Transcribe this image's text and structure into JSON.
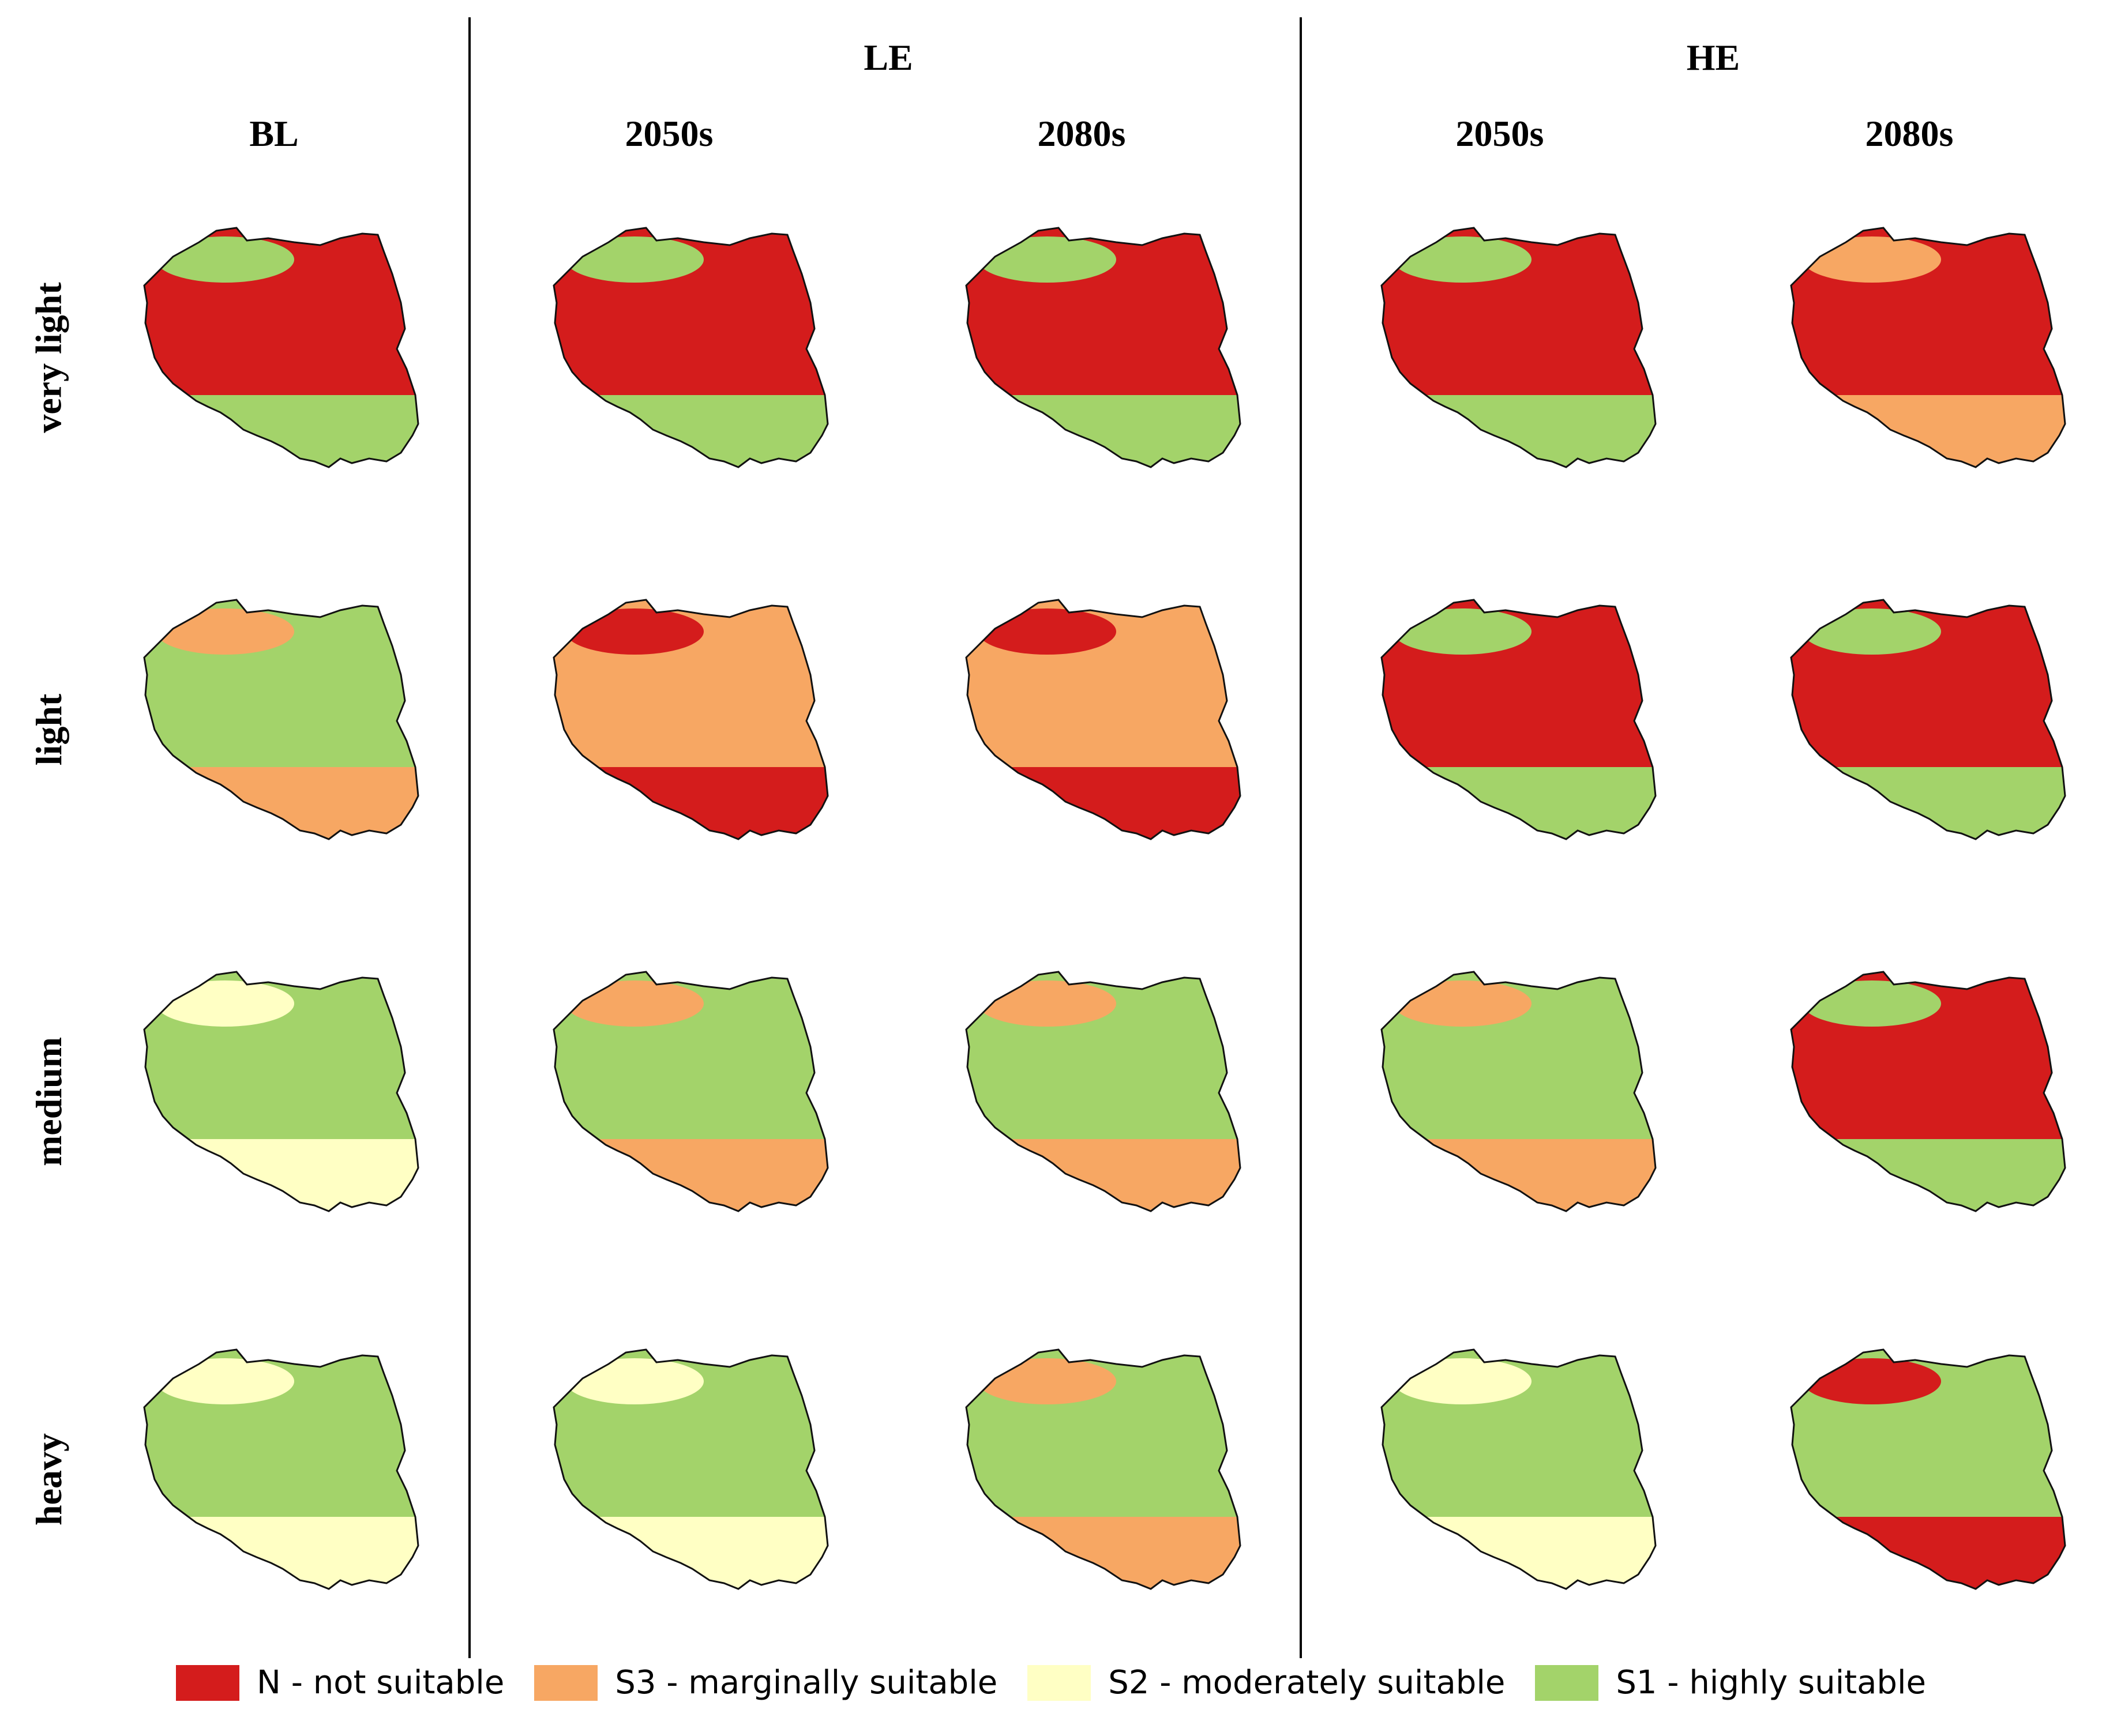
{
  "header": {
    "groups": [
      {
        "label": "LE"
      },
      {
        "label": "HE"
      }
    ],
    "columns": [
      {
        "label": "BL"
      },
      {
        "label": "2050s"
      },
      {
        "label": "2080s"
      },
      {
        "label": "2050s"
      },
      {
        "label": "2080s"
      }
    ]
  },
  "rows": [
    {
      "label": "very light"
    },
    {
      "label": "light"
    },
    {
      "label": "medium"
    },
    {
      "label": "heavy"
    }
  ],
  "legend": [
    {
      "label": "N - not suitable",
      "color": "#d41c1c"
    },
    {
      "label": "S3 - marginally suitable",
      "color": "#f7a763"
    },
    {
      "label": "S2 - moderately suitable",
      "color": "#ffffc4"
    },
    {
      "label": "S1 - highly suitable",
      "color": "#a3d36a"
    }
  ],
  "maps": [
    [
      {
        "region": "Poland",
        "dominant_class": "N",
        "secondary_class": "S1"
      },
      {
        "region": "Poland",
        "dominant_class": "N",
        "secondary_class": "S1"
      },
      {
        "region": "Poland",
        "dominant_class": "N",
        "secondary_class": "S1"
      },
      {
        "region": "Poland",
        "dominant_class": "N",
        "secondary_class": "S1"
      },
      {
        "region": "Poland",
        "dominant_class": "N",
        "secondary_class": "S3"
      }
    ],
    [
      {
        "region": "Poland",
        "dominant_class": "S1",
        "secondary_class": "S3"
      },
      {
        "region": "Poland",
        "dominant_class": "S3",
        "secondary_class": "N"
      },
      {
        "region": "Poland",
        "dominant_class": "S3",
        "secondary_class": "N"
      },
      {
        "region": "Poland",
        "dominant_class": "N",
        "secondary_class": "S1"
      },
      {
        "region": "Poland",
        "dominant_class": "N",
        "secondary_class": "S1"
      }
    ],
    [
      {
        "region": "Poland",
        "dominant_class": "S1",
        "secondary_class": "S2"
      },
      {
        "region": "Poland",
        "dominant_class": "S1",
        "secondary_class": "S3"
      },
      {
        "region": "Poland",
        "dominant_class": "S1",
        "secondary_class": "S3"
      },
      {
        "region": "Poland",
        "dominant_class": "S1",
        "secondary_class": "S3"
      },
      {
        "region": "Poland",
        "dominant_class": "N",
        "secondary_class": "S1"
      }
    ],
    [
      {
        "region": "Poland",
        "dominant_class": "S1",
        "secondary_class": "S2"
      },
      {
        "region": "Poland",
        "dominant_class": "S1",
        "secondary_class": "S2"
      },
      {
        "region": "Poland",
        "dominant_class": "S1",
        "secondary_class": "S3"
      },
      {
        "region": "Poland",
        "dominant_class": "S1",
        "secondary_class": "S2"
      },
      {
        "region": "Poland",
        "dominant_class": "S1",
        "secondary_class": "N"
      }
    ]
  ]
}
